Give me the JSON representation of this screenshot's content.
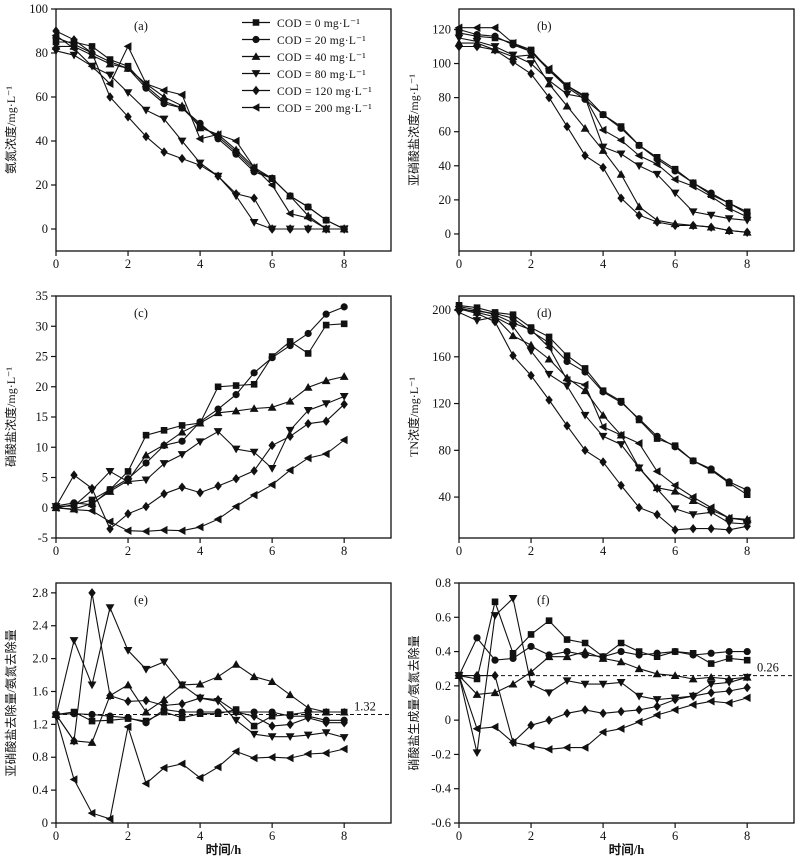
{
  "figure": {
    "ink": "#111111",
    "background": "#ffffff",
    "time_h": [
      0,
      0.5,
      1,
      1.5,
      2,
      2.5,
      3,
      3.5,
      4,
      4.5,
      5,
      5.5,
      6,
      6.5,
      7,
      7.5,
      8
    ],
    "xtick_labels": [
      "0",
      "2",
      "4",
      "6",
      "8"
    ],
    "series_labels": [
      "COD = 0 mg·L⁻¹",
      "COD = 20 mg·L⁻¹",
      "COD = 40 mg·L⁻¹",
      "COD = 80 mg·L⁻¹",
      "COD = 120 mg·L⁻¹",
      "COD = 200 mg·L⁻¹"
    ],
    "series_markers": [
      "square",
      "circle",
      "triangle-up",
      "triangle-down",
      "diamond",
      "triangle-left"
    ],
    "legend_location": "top-right of panel (a)"
  },
  "chart_data": [
    {
      "type": "line",
      "id": "a",
      "panel_label": "(a)",
      "ylabel": "氨氮浓度/mg·L⁻¹",
      "xlabel": "",
      "xlim": [
        0,
        9.3
      ],
      "xticks": [
        0,
        2,
        4,
        6,
        8
      ],
      "ylim": [
        -10,
        100
      ],
      "yticks": [
        0,
        20,
        40,
        60,
        80,
        100
      ],
      "ytick_labels": [
        "0",
        "20",
        "40",
        "60",
        "80",
        "100"
      ],
      "grid": false,
      "series": [
        [
          85,
          85,
          83,
          77,
          74,
          65,
          58,
          55,
          47,
          42,
          35,
          27,
          23,
          15,
          10,
          4,
          0
        ],
        [
          87,
          84,
          80,
          76,
          73,
          64,
          57,
          55,
          48,
          41,
          34,
          26,
          23,
          15,
          10,
          4,
          0
        ],
        [
          83,
          83,
          79,
          75,
          73,
          66,
          60,
          56,
          46,
          43,
          36,
          28,
          23,
          15,
          6,
          0,
          0
        ],
        [
          81,
          79,
          74,
          70,
          62,
          54,
          50,
          40,
          30,
          24,
          15,
          3,
          0,
          0,
          0,
          0,
          0
        ],
        [
          90,
          86,
          80,
          60,
          51,
          42,
          35,
          32,
          29,
          24,
          16,
          14,
          0,
          0,
          0,
          0,
          0
        ],
        [
          88,
          82,
          74,
          66,
          83,
          66,
          63,
          61,
          41,
          43,
          40,
          28,
          20,
          7,
          5,
          0,
          0
        ]
      ]
    },
    {
      "type": "line",
      "id": "b",
      "panel_label": "(b)",
      "ylabel": "亚硝酸盐浓度/mg·L⁻¹",
      "xlabel": "",
      "xlim": [
        0,
        9.3
      ],
      "xticks": [
        0,
        2,
        4,
        6,
        8
      ],
      "ylim": [
        -10,
        132
      ],
      "yticks": [
        0,
        20,
        40,
        60,
        80,
        100,
        120
      ],
      "ytick_labels": [
        "0",
        "20",
        "40",
        "60",
        "80",
        "100",
        "120"
      ],
      "grid": false,
      "series": [
        [
          118,
          116,
          115,
          112,
          108,
          96,
          87,
          81,
          70,
          63,
          52,
          45,
          38,
          30,
          23,
          18,
          13
        ],
        [
          120,
          117,
          116,
          111,
          107,
          96,
          86,
          79,
          70,
          62,
          52,
          44,
          37,
          30,
          24,
          18,
          12
        ],
        [
          112,
          112,
          108,
          104,
          105,
          88,
          75,
          62,
          49,
          35,
          16,
          8,
          6,
          5,
          4,
          2,
          1
        ],
        [
          115,
          113,
          110,
          105,
          100,
          90,
          82,
          80,
          51,
          47,
          40,
          35,
          24,
          13,
          11,
          9,
          8
        ],
        [
          110,
          110,
          108,
          101,
          94,
          80,
          63,
          46,
          39,
          21,
          11,
          7,
          5,
          5,
          4,
          2,
          1
        ],
        [
          121,
          121,
          121,
          112,
          107,
          97,
          87,
          80,
          61,
          55,
          46,
          41,
          32,
          28,
          22,
          15,
          10
        ]
      ]
    },
    {
      "type": "line",
      "id": "c",
      "panel_label": "(c)",
      "ylabel": "硝酸盐浓度/mg·L⁻¹",
      "xlabel": "",
      "xlim": [
        0,
        9.3
      ],
      "xticks": [
        0,
        2,
        4,
        6,
        8
      ],
      "ylim": [
        -5,
        35
      ],
      "yticks": [
        -5,
        0,
        5,
        10,
        15,
        20,
        25,
        30,
        35
      ],
      "ytick_labels": [
        "-5",
        "0",
        "5",
        "10",
        "15",
        "20",
        "25",
        "30",
        "35"
      ],
      "grid": false,
      "series": [
        [
          0,
          0.5,
          1.3,
          3,
          6,
          12,
          12.8,
          13.6,
          14,
          20,
          20.2,
          20.4,
          25,
          27.5,
          25.5,
          30.2,
          30.4
        ],
        [
          0.3,
          0.8,
          0.5,
          3,
          4.8,
          7.4,
          10.3,
          11,
          14.2,
          16.3,
          18.7,
          22.3,
          24.8,
          26.8,
          28.8,
          32,
          33.2
        ],
        [
          0,
          -0.2,
          0.7,
          2.7,
          4.5,
          8.7,
          10.4,
          12.5,
          14,
          15.7,
          16,
          16.4,
          16.6,
          17.6,
          19.9,
          21,
          21.7
        ],
        [
          0.2,
          0.3,
          2.9,
          6,
          4.3,
          4.6,
          7.3,
          8.8,
          10.9,
          12.6,
          9.7,
          9.2,
          6.5,
          12.8,
          16.1,
          17.2,
          18.4
        ],
        [
          0.2,
          5.4,
          3.2,
          -3.5,
          -1,
          0.2,
          2.3,
          3.4,
          2.5,
          3.6,
          4.8,
          6.1,
          10.3,
          11.8,
          13.9,
          14.3,
          17.1
        ],
        [
          0,
          -0.3,
          -0.5,
          -2.3,
          -3.8,
          -3.9,
          -3.7,
          -3.8,
          -3.2,
          -1.9,
          0.2,
          2.1,
          3.8,
          6.2,
          8.2,
          8.9,
          11.2
        ]
      ]
    },
    {
      "type": "line",
      "id": "d",
      "panel_label": "(d)",
      "ylabel": "TN浓度/mg·L⁻¹",
      "xlabel": "",
      "xlim": [
        0,
        9.3
      ],
      "xticks": [
        0,
        2,
        4,
        6,
        8
      ],
      "ylim": [
        5,
        212
      ],
      "yticks": [
        40,
        80,
        120,
        160,
        200
      ],
      "ytick_labels": [
        "40",
        "80",
        "120",
        "160",
        "200"
      ],
      "grid": false,
      "series": [
        [
          204,
          202,
          198,
          196,
          185,
          177,
          161,
          150,
          131,
          122,
          106,
          90,
          84,
          71,
          63,
          52,
          42
        ],
        [
          201,
          199,
          197,
          193,
          182,
          172,
          156,
          147,
          130,
          121,
          107,
          92,
          83,
          71,
          64,
          53,
          46
        ],
        [
          202,
          198,
          194,
          178,
          170,
          158,
          142,
          131,
          110,
          93,
          65,
          48,
          45,
          37,
          29,
          22,
          21
        ],
        [
          198,
          191,
          194,
          186,
          165,
          145,
          135,
          110,
          92,
          85,
          65,
          47,
          30,
          25,
          27,
          18,
          17
        ],
        [
          201,
          197,
          190,
          161,
          144,
          123,
          101,
          80,
          70,
          50,
          31,
          25,
          12,
          13,
          13,
          12,
          15
        ],
        [
          203,
          200,
          196,
          189,
          183,
          168,
          140,
          136,
          100,
          93,
          86,
          62,
          50,
          40,
          31,
          22,
          20
        ]
      ]
    },
    {
      "type": "line",
      "id": "e",
      "panel_label": "(e)",
      "ylabel": "亚硝酸盐去除量/氨氮去除量",
      "xlabel": "时间/h",
      "xlim": [
        0,
        9.3
      ],
      "xticks": [
        0,
        2,
        4,
        6,
        8
      ],
      "ylim": [
        0,
        2.92
      ],
      "yticks": [
        0,
        0.4,
        0.8,
        1.2,
        1.6,
        2.0,
        2.4,
        2.8
      ],
      "ytick_labels": [
        "0",
        "0.4",
        "0.8",
        "1.2",
        "1.6",
        "2.0",
        "2.4",
        "2.8"
      ],
      "grid": false,
      "refline": {
        "y": 1.32,
        "label": "1.32"
      },
      "series": [
        [
          1.32,
          1.35,
          1.24,
          1.25,
          1.27,
          1.24,
          1.35,
          1.28,
          1.33,
          1.33,
          1.38,
          1.18,
          1.3,
          1.32,
          1.35,
          1.35,
          1.35
        ],
        [
          1.32,
          1.33,
          1.32,
          1.3,
          1.28,
          1.22,
          1.38,
          1.35,
          1.35,
          1.35,
          1.35,
          1.35,
          1.35,
          1.3,
          1.3,
          1.25,
          1.25
        ],
        [
          1.32,
          1.0,
          0.98,
          1.55,
          1.68,
          1.35,
          1.5,
          1.68,
          1.69,
          1.78,
          1.93,
          1.78,
          1.72,
          1.56,
          1.4,
          1.35,
          1.35
        ],
        [
          1.3,
          2.22,
          1.68,
          2.62,
          2.1,
          1.87,
          1.96,
          1.68,
          1.52,
          1.48,
          1.25,
          1.08,
          1.05,
          1.05,
          1.07,
          1.1,
          1.04
        ],
        [
          1.32,
          1.0,
          2.8,
          1.55,
          1.48,
          1.49,
          1.43,
          1.45,
          1.52,
          1.5,
          1.35,
          1.3,
          1.18,
          1.2,
          1.28,
          1.22,
          1.22
        ],
        [
          1.3,
          0.53,
          0.12,
          0.05,
          1.17,
          0.48,
          0.67,
          0.72,
          0.55,
          0.68,
          0.87,
          0.79,
          0.8,
          0.79,
          0.84,
          0.85,
          0.9
        ]
      ]
    },
    {
      "type": "line",
      "id": "f",
      "panel_label": "(f)",
      "ylabel": "硝酸盐生成量/氨氮去除量",
      "xlabel": "时间/h",
      "xlim": [
        0,
        9.3
      ],
      "xticks": [
        0,
        2,
        4,
        6,
        8
      ],
      "ylim": [
        -0.6,
        0.8
      ],
      "yticks": [
        -0.6,
        -0.4,
        -0.2,
        0,
        0.2,
        0.4,
        0.6,
        0.8
      ],
      "ytick_labels": [
        "-0.6",
        "-0.4",
        "-0.2",
        "0",
        "0.2",
        "0.4",
        "0.6",
        "0.8"
      ],
      "grid": false,
      "refline": {
        "y": 0.26,
        "label": "0.26"
      },
      "series": [
        [
          0.26,
          0.24,
          0.69,
          0.39,
          0.5,
          0.58,
          0.47,
          0.45,
          0.37,
          0.45,
          0.4,
          0.37,
          0.4,
          0.39,
          0.33,
          0.36,
          0.35
        ],
        [
          0.26,
          0.48,
          0.35,
          0.36,
          0.43,
          0.38,
          0.4,
          0.38,
          0.37,
          0.4,
          0.38,
          0.39,
          0.4,
          0.38,
          0.39,
          0.4,
          0.4
        ],
        [
          0.26,
          0.15,
          0.16,
          0.21,
          0.28,
          0.37,
          0.37,
          0.4,
          0.36,
          0.34,
          0.3,
          0.27,
          0.26,
          0.24,
          0.25,
          0.24,
          0.25
        ],
        [
          0.26,
          -0.19,
          0.61,
          0.71,
          0.21,
          0.16,
          0.23,
          0.21,
          0.21,
          0.22,
          0.14,
          0.12,
          0.13,
          0.14,
          0.21,
          0.22,
          0.25
        ],
        [
          0.26,
          0.26,
          0.26,
          -0.13,
          -0.03,
          0.0,
          0.04,
          0.06,
          0.04,
          0.05,
          0.06,
          0.08,
          0.12,
          0.14,
          0.16,
          0.17,
          0.19
        ],
        [
          0.26,
          -0.05,
          -0.04,
          -0.13,
          -0.15,
          -0.17,
          -0.16,
          -0.16,
          -0.07,
          -0.05,
          -0.01,
          0.03,
          0.06,
          0.09,
          0.11,
          0.1,
          0.13
        ]
      ]
    }
  ]
}
